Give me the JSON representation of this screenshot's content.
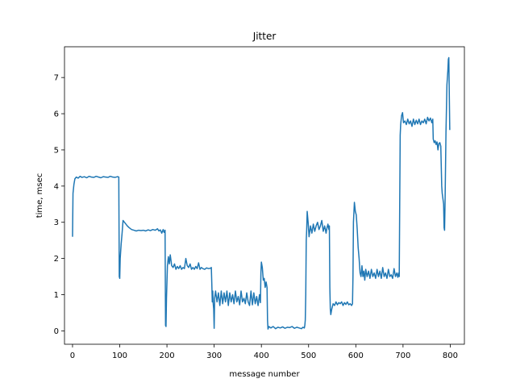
{
  "chart_data": {
    "type": "line",
    "title": "Jitter",
    "xlabel": "message number",
    "ylabel": "time, msec",
    "xlim": [
      -17,
      830
    ],
    "ylim": [
      -0.37,
      7.85
    ],
    "xticks": [
      0,
      100,
      200,
      300,
      400,
      500,
      600,
      700,
      800
    ],
    "yticks": [
      0,
      1,
      2,
      3,
      4,
      5,
      6,
      7
    ],
    "grid": false,
    "legend": "none",
    "line_color": "#1f77b4",
    "series": [
      {
        "points": [
          [
            0,
            2.6
          ],
          [
            1,
            3.8
          ],
          [
            3,
            4.05
          ],
          [
            5,
            4.2
          ],
          [
            8,
            4.25
          ],
          [
            12,
            4.22
          ],
          [
            16,
            4.27
          ],
          [
            20,
            4.24
          ],
          [
            25,
            4.26
          ],
          [
            30,
            4.23
          ],
          [
            35,
            4.27
          ],
          [
            40,
            4.25
          ],
          [
            45,
            4.24
          ],
          [
            50,
            4.27
          ],
          [
            55,
            4.25
          ],
          [
            60,
            4.23
          ],
          [
            65,
            4.26
          ],
          [
            70,
            4.25
          ],
          [
            75,
            4.24
          ],
          [
            80,
            4.27
          ],
          [
            85,
            4.25
          ],
          [
            90,
            4.24
          ],
          [
            95,
            4.26
          ],
          [
            98,
            4.25
          ],
          [
            99,
            1.5
          ],
          [
            100,
            1.45
          ],
          [
            101,
            2.0
          ],
          [
            103,
            2.4
          ],
          [
            105,
            2.7
          ],
          [
            107,
            3.05
          ],
          [
            110,
            3.0
          ],
          [
            113,
            2.95
          ],
          [
            116,
            2.9
          ],
          [
            120,
            2.85
          ],
          [
            125,
            2.8
          ],
          [
            130,
            2.78
          ],
          [
            135,
            2.76
          ],
          [
            140,
            2.78
          ],
          [
            145,
            2.77
          ],
          [
            150,
            2.78
          ],
          [
            155,
            2.76
          ],
          [
            160,
            2.79
          ],
          [
            165,
            2.77
          ],
          [
            170,
            2.8
          ],
          [
            175,
            2.78
          ],
          [
            180,
            2.82
          ],
          [
            183,
            2.76
          ],
          [
            186,
            2.79
          ],
          [
            189,
            2.7
          ],
          [
            192,
            2.8
          ],
          [
            194,
            2.72
          ],
          [
            196,
            2.78
          ],
          [
            197,
            0.15
          ],
          [
            198,
            0.12
          ],
          [
            199,
            0.9
          ],
          [
            201,
            1.8
          ],
          [
            203,
            2.05
          ],
          [
            205,
            1.85
          ],
          [
            207,
            2.1
          ],
          [
            210,
            1.8
          ],
          [
            213,
            1.75
          ],
          [
            216,
            1.85
          ],
          [
            219,
            1.7
          ],
          [
            222,
            1.78
          ],
          [
            225,
            1.72
          ],
          [
            228,
            1.8
          ],
          [
            231,
            1.7
          ],
          [
            234,
            1.75
          ],
          [
            237,
            1.72
          ],
          [
            240,
            2.0
          ],
          [
            243,
            1.8
          ],
          [
            246,
            1.75
          ],
          [
            249,
            1.85
          ],
          [
            252,
            1.7
          ],
          [
            255,
            1.75
          ],
          [
            258,
            1.7
          ],
          [
            261,
            1.78
          ],
          [
            264,
            1.72
          ],
          [
            267,
            1.88
          ],
          [
            270,
            1.7
          ],
          [
            273,
            1.75
          ],
          [
            276,
            1.72
          ],
          [
            280,
            1.7
          ],
          [
            284,
            1.74
          ],
          [
            288,
            1.72
          ],
          [
            292,
            1.73
          ],
          [
            294,
            1.75
          ],
          [
            295,
            1.3
          ],
          [
            296,
            0.8
          ],
          [
            297,
            1.1
          ],
          [
            298,
            0.75
          ],
          [
            299,
            0.6
          ],
          [
            300,
            0.07
          ],
          [
            301,
            0.9
          ],
          [
            303,
            1.1
          ],
          [
            306,
            0.8
          ],
          [
            309,
            1.05
          ],
          [
            312,
            0.7
          ],
          [
            315,
            1.1
          ],
          [
            318,
            0.75
          ],
          [
            321,
            1.05
          ],
          [
            324,
            0.8
          ],
          [
            327,
            1.1
          ],
          [
            330,
            0.7
          ],
          [
            333,
            1.05
          ],
          [
            336,
            0.8
          ],
          [
            339,
            1.0
          ],
          [
            342,
            0.75
          ],
          [
            345,
            1.1
          ],
          [
            348,
            0.8
          ],
          [
            351,
            0.95
          ],
          [
            354,
            0.72
          ],
          [
            357,
            1.1
          ],
          [
            360,
            0.8
          ],
          [
            363,
            0.9
          ],
          [
            366,
            0.75
          ],
          [
            369,
            1.05
          ],
          [
            372,
            0.8
          ],
          [
            375,
            0.7
          ],
          [
            378,
            1.1
          ],
          [
            381,
            0.72
          ],
          [
            384,
            1.05
          ],
          [
            387,
            0.75
          ],
          [
            390,
            0.95
          ],
          [
            393,
            0.7
          ],
          [
            396,
            1.0
          ],
          [
            398,
            0.78
          ],
          [
            399,
            1.6
          ],
          [
            400,
            1.9
          ],
          [
            402,
            1.75
          ],
          [
            404,
            1.4
          ],
          [
            406,
            1.45
          ],
          [
            408,
            1.2
          ],
          [
            410,
            1.35
          ],
          [
            412,
            1.2
          ],
          [
            413,
            0.3
          ],
          [
            414,
            0.05
          ],
          [
            416,
            0.12
          ],
          [
            420,
            0.08
          ],
          [
            425,
            0.12
          ],
          [
            430,
            0.06
          ],
          [
            435,
            0.1
          ],
          [
            440,
            0.08
          ],
          [
            445,
            0.11
          ],
          [
            450,
            0.07
          ],
          [
            455,
            0.1
          ],
          [
            460,
            0.09
          ],
          [
            465,
            0.12
          ],
          [
            470,
            0.07
          ],
          [
            475,
            0.1
          ],
          [
            480,
            0.08
          ],
          [
            485,
            0.06
          ],
          [
            488,
            0.1
          ],
          [
            491,
            0.08
          ],
          [
            492,
            0.15
          ],
          [
            493,
            0.3
          ],
          [
            494,
            1.0
          ],
          [
            495,
            2.5
          ],
          [
            496,
            2.8
          ],
          [
            497,
            3.3
          ],
          [
            499,
            3.0
          ],
          [
            501,
            2.6
          ],
          [
            504,
            2.9
          ],
          [
            507,
            2.7
          ],
          [
            510,
            2.95
          ],
          [
            513,
            2.75
          ],
          [
            516,
            2.9
          ],
          [
            519,
            3.0
          ],
          [
            522,
            2.8
          ],
          [
            525,
            2.9
          ],
          [
            528,
            3.05
          ],
          [
            531,
            2.75
          ],
          [
            534,
            2.9
          ],
          [
            537,
            2.7
          ],
          [
            539,
            2.85
          ],
          [
            541,
            2.95
          ],
          [
            543,
            2.8
          ],
          [
            544,
            2.9
          ],
          [
            545,
            1.2
          ],
          [
            546,
            0.6
          ],
          [
            547,
            0.45
          ],
          [
            549,
            0.6
          ],
          [
            552,
            0.75
          ],
          [
            555,
            0.7
          ],
          [
            558,
            0.8
          ],
          [
            561,
            0.72
          ],
          [
            564,
            0.78
          ],
          [
            567,
            0.75
          ],
          [
            570,
            0.8
          ],
          [
            573,
            0.7
          ],
          [
            576,
            0.78
          ],
          [
            579,
            0.73
          ],
          [
            582,
            0.8
          ],
          [
            585,
            0.72
          ],
          [
            588,
            0.75
          ],
          [
            591,
            0.7
          ],
          [
            593,
            0.75
          ],
          [
            594,
            1.5
          ],
          [
            595,
            3.0
          ],
          [
            597,
            3.55
          ],
          [
            599,
            3.3
          ],
          [
            601,
            3.2
          ],
          [
            603,
            2.8
          ],
          [
            605,
            2.3
          ],
          [
            607,
            2.0
          ],
          [
            609,
            1.6
          ],
          [
            611,
            1.5
          ],
          [
            613,
            1.8
          ],
          [
            615,
            1.5
          ],
          [
            617,
            1.65
          ],
          [
            619,
            1.4
          ],
          [
            621,
            1.7
          ],
          [
            624,
            1.5
          ],
          [
            627,
            1.65
          ],
          [
            630,
            1.45
          ],
          [
            633,
            1.7
          ],
          [
            636,
            1.5
          ],
          [
            639,
            1.6
          ],
          [
            642,
            1.45
          ],
          [
            645,
            1.7
          ],
          [
            648,
            1.5
          ],
          [
            651,
            1.65
          ],
          [
            654,
            1.45
          ],
          [
            657,
            1.75
          ],
          [
            660,
            1.5
          ],
          [
            663,
            1.6
          ],
          [
            666,
            1.45
          ],
          [
            669,
            1.7
          ],
          [
            672,
            1.5
          ],
          [
            675,
            1.55
          ],
          [
            678,
            1.45
          ],
          [
            681,
            1.72
          ],
          [
            684,
            1.5
          ],
          [
            687,
            1.6
          ],
          [
            689,
            1.48
          ],
          [
            691,
            1.6
          ],
          [
            692,
            1.5
          ],
          [
            693,
            3.5
          ],
          [
            694,
            5.4
          ],
          [
            695,
            5.7
          ],
          [
            697,
            5.95
          ],
          [
            699,
            6.03
          ],
          [
            701,
            5.75
          ],
          [
            704,
            5.8
          ],
          [
            707,
            5.7
          ],
          [
            710,
            5.85
          ],
          [
            713,
            5.72
          ],
          [
            716,
            5.8
          ],
          [
            719,
            5.65
          ],
          [
            722,
            5.85
          ],
          [
            725,
            5.7
          ],
          [
            728,
            5.82
          ],
          [
            731,
            5.72
          ],
          [
            734,
            5.85
          ],
          [
            737,
            5.7
          ],
          [
            740,
            5.8
          ],
          [
            743,
            5.75
          ],
          [
            746,
            5.85
          ],
          [
            749,
            5.72
          ],
          [
            752,
            5.9
          ],
          [
            755,
            5.8
          ],
          [
            758,
            5.88
          ],
          [
            761,
            5.75
          ],
          [
            763,
            5.85
          ],
          [
            764,
            5.3
          ],
          [
            766,
            5.2
          ],
          [
            768,
            5.25
          ],
          [
            770,
            5.15
          ],
          [
            772,
            5.22
          ],
          [
            774,
            5.0
          ],
          [
            776,
            5.18
          ],
          [
            778,
            5.2
          ],
          [
            780,
            5.1
          ],
          [
            782,
            4.0
          ],
          [
            783,
            3.8
          ],
          [
            785,
            3.6
          ],
          [
            786,
            3.5
          ],
          [
            787,
            2.85
          ],
          [
            788,
            2.78
          ],
          [
            789,
            3.5
          ],
          [
            791,
            5.5
          ],
          [
            793,
            6.8
          ],
          [
            795,
            7.2
          ],
          [
            796,
            7.5
          ],
          [
            797,
            7.55
          ],
          [
            799,
            5.55
          ]
        ]
      }
    ]
  }
}
